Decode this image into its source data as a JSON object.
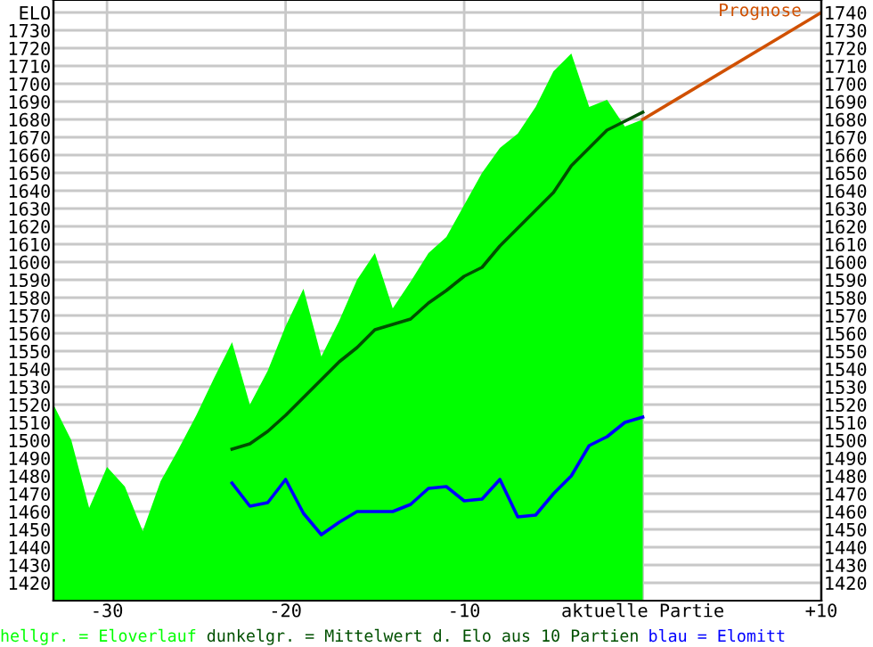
{
  "chart_data": {
    "type": "line",
    "xlim": [
      -33,
      10
    ],
    "ylim": [
      1410,
      1747
    ],
    "y2lim": [
      1410,
      1747
    ],
    "xticks": [
      -30,
      -20,
      -10,
      {
        "value": 0,
        "label": "aktuelle Partie"
      },
      {
        "value": 10,
        "label": "+10"
      }
    ],
    "yticks": [
      1420,
      1430,
      1440,
      1450,
      1460,
      1470,
      1480,
      1490,
      1500,
      1510,
      1520,
      1530,
      1540,
      1550,
      1560,
      1570,
      1580,
      1590,
      1600,
      1610,
      1620,
      1630,
      1640,
      1650,
      1660,
      1670,
      1680,
      1690,
      1700,
      1710,
      1720,
      1730,
      {
        "value": 1740,
        "label": "ELO"
      }
    ],
    "y2ticks": [
      1420,
      1430,
      1440,
      1450,
      1460,
      1470,
      1480,
      1490,
      1500,
      1510,
      1520,
      1530,
      1540,
      1550,
      1560,
      1570,
      1580,
      1590,
      1600,
      1610,
      1620,
      1630,
      1640,
      1650,
      1660,
      1670,
      1680,
      1690,
      1700,
      1710,
      1720,
      1730,
      1740
    ],
    "grid": true,
    "legend": "bottom",
    "series": [
      {
        "name": "hellgr. = Eloverlauf",
        "type": "area",
        "color": "#00ff00",
        "x": [
          -33,
          -32,
          -31,
          -30,
          -29,
          -28,
          -27,
          -26,
          -25,
          -24,
          -23,
          -22,
          -21,
          -20,
          -19,
          -18,
          -17,
          -16,
          -15,
          -14,
          -13,
          -12,
          -11,
          -10,
          -9,
          -8,
          -7,
          -6,
          -5,
          -4,
          -3,
          -2,
          -1,
          0
        ],
        "values": [
          1520,
          1500,
          1462,
          1485,
          1474,
          1449,
          1477,
          1495,
          1514,
          1535,
          1555,
          1520,
          1539,
          1564,
          1585,
          1547,
          1567,
          1590,
          1605,
          1574,
          1589,
          1605,
          1614,
          1632,
          1650,
          1664,
          1672,
          1687,
          1707,
          1717,
          1687,
          1691,
          1676,
          1680
        ]
      },
      {
        "name": "dunkelgr. = Mittelwert d. Elo aus 10 Partien",
        "color": "#005000",
        "x": [
          -23,
          -22,
          -21,
          -20,
          -19,
          -18,
          -17,
          -16,
          -15,
          -14,
          -13,
          -12,
          -11,
          -10,
          -9,
          -8,
          -7,
          -6,
          -5,
          -4,
          -3,
          -2,
          -1,
          0
        ],
        "values": [
          1495,
          1498,
          1505,
          1514,
          1524,
          1534,
          1544,
          1552,
          1562,
          1565,
          1568,
          1577,
          1584,
          1592,
          1597,
          1609,
          1619,
          1629,
          1639,
          1654,
          1664,
          1674,
          1679,
          1684
        ]
      },
      {
        "name": "blau = Elomitt",
        "color": "#0000ff",
        "x": [
          -23,
          -22,
          -21,
          -20,
          -19,
          -18,
          -17,
          -16,
          -15,
          -14,
          -13,
          -12,
          -11,
          -10,
          -9,
          -8,
          -7,
          -6,
          -5,
          -4,
          -3,
          -2,
          -1,
          0
        ],
        "values": [
          1476,
          1463,
          1465,
          1478,
          1459,
          1447,
          1454,
          1460,
          1460,
          1460,
          1464,
          1473,
          1474,
          1466,
          1467,
          1478,
          1457,
          1458,
          1470,
          1480,
          1497,
          1502,
          1510,
          1513
        ]
      },
      {
        "color": "#d05000",
        "x": [
          0,
          10
        ],
        "values": [
          1680,
          1740
        ]
      }
    ],
    "annotations": [
      "Prognose"
    ]
  }
}
